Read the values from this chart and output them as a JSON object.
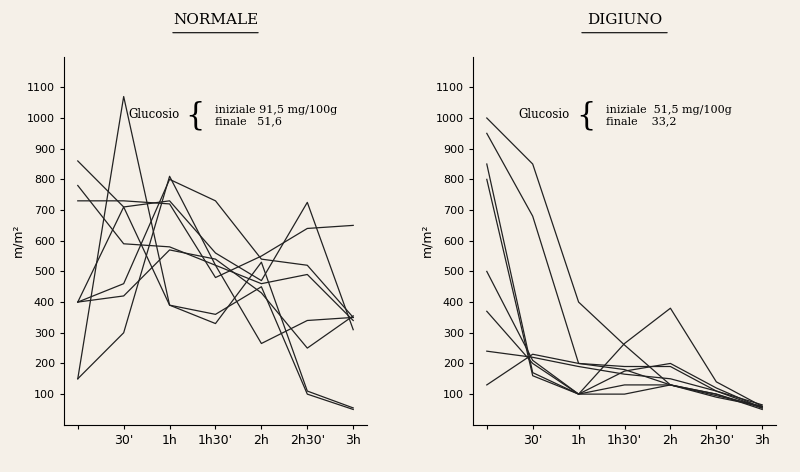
{
  "title_left": "NORMALE",
  "title_right": "DIGIUNO",
  "ylabel": "m/m²",
  "x_labels": [
    "",
    "30'",
    "1h",
    "1h30'",
    "2h",
    "2h30'",
    "3h"
  ],
  "x_values": [
    0,
    1,
    2,
    3,
    4,
    5,
    6
  ],
  "ylim": [
    0,
    1200
  ],
  "yticks": [
    100,
    200,
    300,
    400,
    500,
    600,
    700,
    800,
    900,
    1000,
    1100
  ],
  "background_color": "#f5f0e8",
  "line_color": "#222222",
  "glucosio_left_text": "Glucosio",
  "glucosio_left_info": "iniziale 91,5 mg/100g\nfinale   51,6",
  "glucosio_right_text": "Glucosio",
  "glucosio_right_info": "iniziale  51,5 mg/100g\nfinale    33,2",
  "normale_lines": [
    [
      150,
      1070,
      390,
      360,
      450,
      100,
      50
    ],
    [
      400,
      710,
      390,
      330,
      530,
      110,
      55
    ],
    [
      400,
      420,
      570,
      540,
      430,
      250,
      355
    ],
    [
      400,
      460,
      800,
      730,
      540,
      520,
      350
    ],
    [
      730,
      730,
      720,
      480,
      550,
      640,
      650
    ],
    [
      780,
      590,
      580,
      520,
      460,
      490,
      340
    ],
    [
      860,
      710,
      730,
      560,
      470,
      725,
      310
    ],
    [
      150,
      300,
      810,
      520,
      265,
      340,
      350
    ]
  ],
  "digiuno_lines": [
    [
      130,
      230,
      200,
      180,
      130,
      90,
      60
    ],
    [
      240,
      220,
      190,
      165,
      150,
      110,
      65
    ],
    [
      370,
      200,
      100,
      130,
      130,
      95,
      60
    ],
    [
      500,
      210,
      100,
      175,
      200,
      120,
      55
    ],
    [
      800,
      160,
      100,
      265,
      380,
      140,
      60
    ],
    [
      850,
      170,
      100,
      100,
      130,
      100,
      50
    ],
    [
      950,
      680,
      200,
      190,
      190,
      110,
      55
    ],
    [
      1000,
      850,
      400,
      260,
      130,
      100,
      55
    ]
  ]
}
